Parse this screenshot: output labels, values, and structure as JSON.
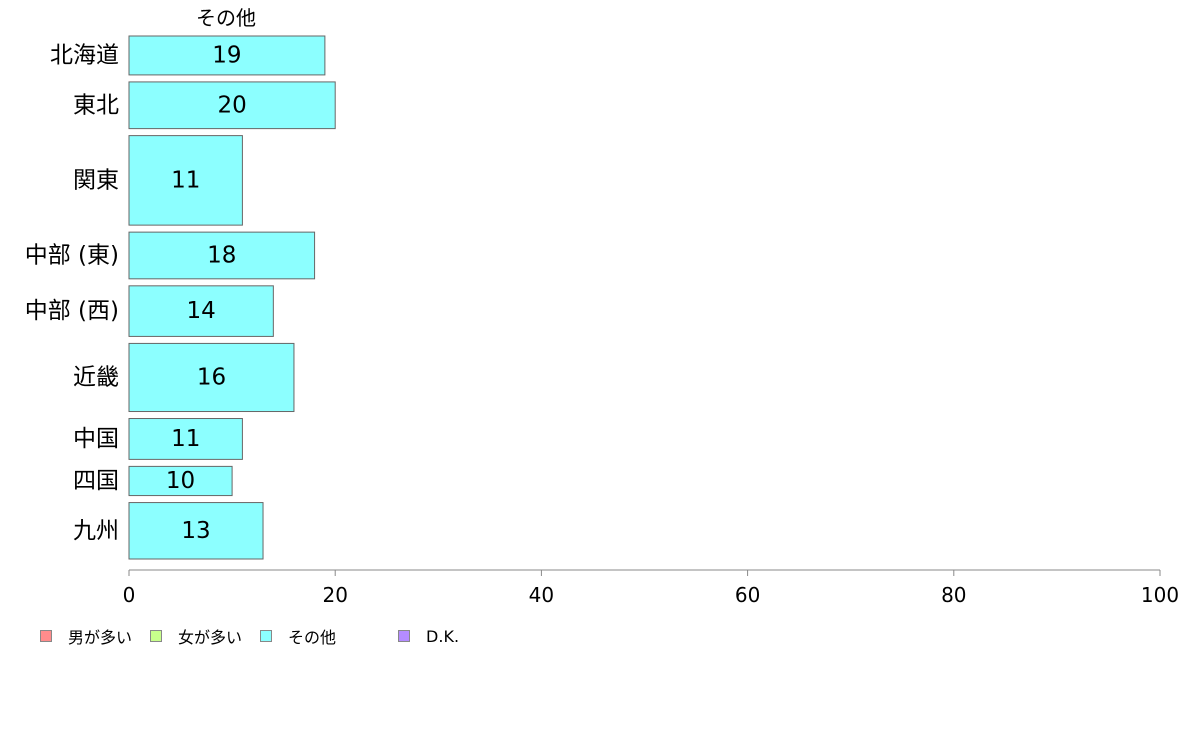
{
  "chart_data": {
    "type": "bar",
    "orientation": "horizontal",
    "series_title": "その他",
    "categories": [
      "北海道",
      "東北",
      "関東",
      "中部 (東)",
      "中部 (西)",
      "近畿",
      "中国",
      "四国",
      "九州"
    ],
    "values": [
      19,
      20,
      11,
      18,
      14,
      16,
      11,
      10,
      13
    ],
    "data_labels": [
      "19",
      "20",
      "11",
      "18",
      "14",
      "16",
      "11",
      "10",
      "13"
    ],
    "relative_heights": [
      1.0,
      1.2,
      2.3,
      1.2,
      1.3,
      1.75,
      1.05,
      0.75,
      1.45
    ],
    "xlim": [
      0,
      100
    ],
    "xticks": [
      0,
      20,
      40,
      60,
      80,
      100
    ],
    "xtick_labels": [
      "0",
      "20",
      "40",
      "60",
      "80",
      "100"
    ],
    "bar_color": "#8cffff",
    "bar_stroke": "#666666",
    "legend_position": "bottom-left",
    "grid": false
  },
  "legend": [
    {
      "label": "男が多い",
      "color": "#ff8c8c"
    },
    {
      "label": "女が多い",
      "color": "#c8ff8c"
    },
    {
      "label": "その他",
      "color": "#8cffff"
    },
    {
      "label": "D.K.",
      "color": "#b48cff"
    }
  ]
}
